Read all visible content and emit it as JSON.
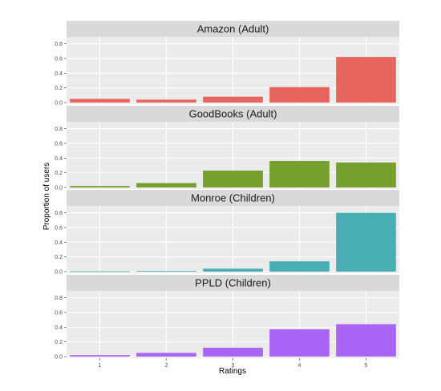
{
  "chart_data": {
    "type": "bar",
    "xlabel": "Ratings",
    "ylabel": "Proportion of users",
    "categories": [
      "1",
      "2",
      "3",
      "4",
      "5"
    ],
    "ylim": [
      0,
      0.85
    ],
    "yticks": [
      "0.0",
      "0.2",
      "0.4",
      "0.6",
      "0.8"
    ],
    "grid": true,
    "facets": [
      {
        "title": "Amazon (Adult)",
        "color": "#E8655F",
        "values": [
          0.05,
          0.04,
          0.08,
          0.21,
          0.62
        ]
      },
      {
        "title": "GoodBooks (Adult)",
        "color": "#76A02D",
        "values": [
          0.02,
          0.06,
          0.23,
          0.36,
          0.34
        ]
      },
      {
        "title": "Monroe (Children)",
        "color": "#49AEB4",
        "values": [
          0.005,
          0.01,
          0.04,
          0.14,
          0.8
        ]
      },
      {
        "title": "PPLD (Children)",
        "color": "#A865F5",
        "values": [
          0.02,
          0.05,
          0.12,
          0.37,
          0.44
        ]
      }
    ]
  }
}
